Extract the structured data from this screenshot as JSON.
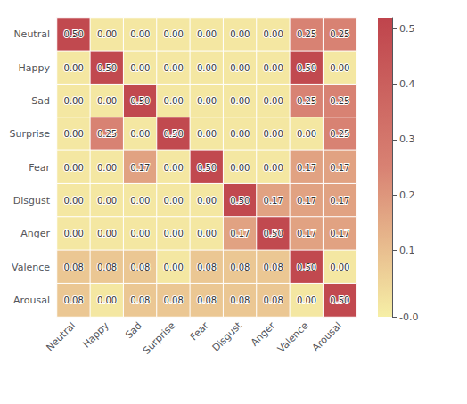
{
  "chart_data": {
    "type": "heatmap",
    "categories": [
      "Neutral",
      "Happy",
      "Sad",
      "Surprise",
      "Fear",
      "Disgust",
      "Anger",
      "Valence",
      "Arousal"
    ],
    "values": [
      [
        0.5,
        0.0,
        0.0,
        0.0,
        0.0,
        0.0,
        0.0,
        0.25,
        0.25
      ],
      [
        0.0,
        0.5,
        0.0,
        0.0,
        0.0,
        0.0,
        0.0,
        0.5,
        0.0
      ],
      [
        0.0,
        0.0,
        0.5,
        0.0,
        0.0,
        0.0,
        0.0,
        0.25,
        0.25
      ],
      [
        0.0,
        0.25,
        0.0,
        0.5,
        0.0,
        0.0,
        0.0,
        0.0,
        0.25
      ],
      [
        0.0,
        0.0,
        0.17,
        0.0,
        0.5,
        0.0,
        0.0,
        0.17,
        0.17
      ],
      [
        0.0,
        0.0,
        0.0,
        0.0,
        0.0,
        0.5,
        0.17,
        0.17,
        0.17
      ],
      [
        0.0,
        0.0,
        0.0,
        0.0,
        0.0,
        0.17,
        0.5,
        0.17,
        0.17
      ],
      [
        0.08,
        0.08,
        0.08,
        0.0,
        0.08,
        0.08,
        0.08,
        0.5,
        0.0
      ],
      [
        0.08,
        0.0,
        0.08,
        0.08,
        0.08,
        0.08,
        0.08,
        0.0,
        0.5
      ]
    ],
    "value_labels": [
      [
        "0.50",
        "0.00",
        "0.00",
        "0.00",
        "0.00",
        "0.00",
        "0.00",
        "0.25",
        "0.25"
      ],
      [
        "0.00",
        "0.50",
        "0.00",
        "0.00",
        "0.00",
        "0.00",
        "0.00",
        "0.50",
        "0.00"
      ],
      [
        "0.00",
        "0.00",
        "0.50",
        "0.00",
        "0.00",
        "0.00",
        "0.00",
        "0.25",
        "0.25"
      ],
      [
        "0.00",
        "0.25",
        "0.00",
        "0.50",
        "0.00",
        "0.00",
        "0.00",
        "0.00",
        "0.25"
      ],
      [
        "0.00",
        "0.00",
        "0.17",
        "0.00",
        "0.50",
        "0.00",
        "0.00",
        "0.17",
        "0.17"
      ],
      [
        "0.00",
        "0.00",
        "0.00",
        "0.00",
        "0.00",
        "0.50",
        "0.17",
        "0.17",
        "0.17"
      ],
      [
        "0.00",
        "0.00",
        "0.00",
        "0.00",
        "0.00",
        "0.17",
        "0.50",
        "0.17",
        "0.17"
      ],
      [
        "0.08",
        "0.08",
        "0.08",
        "0.00",
        "0.08",
        "0.08",
        "0.08",
        "0.50",
        "0.00"
      ],
      [
        "0.08",
        "0.00",
        "0.08",
        "0.08",
        "0.08",
        "0.08",
        "0.08",
        "0.00",
        "0.50"
      ]
    ],
    "data_labels": true,
    "colorbar_range": [
      -0.02,
      0.52
    ],
    "colorbar_ticks": [
      {
        "value": -0.02,
        "label": "-0.0"
      },
      0.1,
      0.2,
      0.3,
      0.4,
      0.5
    ]
  }
}
